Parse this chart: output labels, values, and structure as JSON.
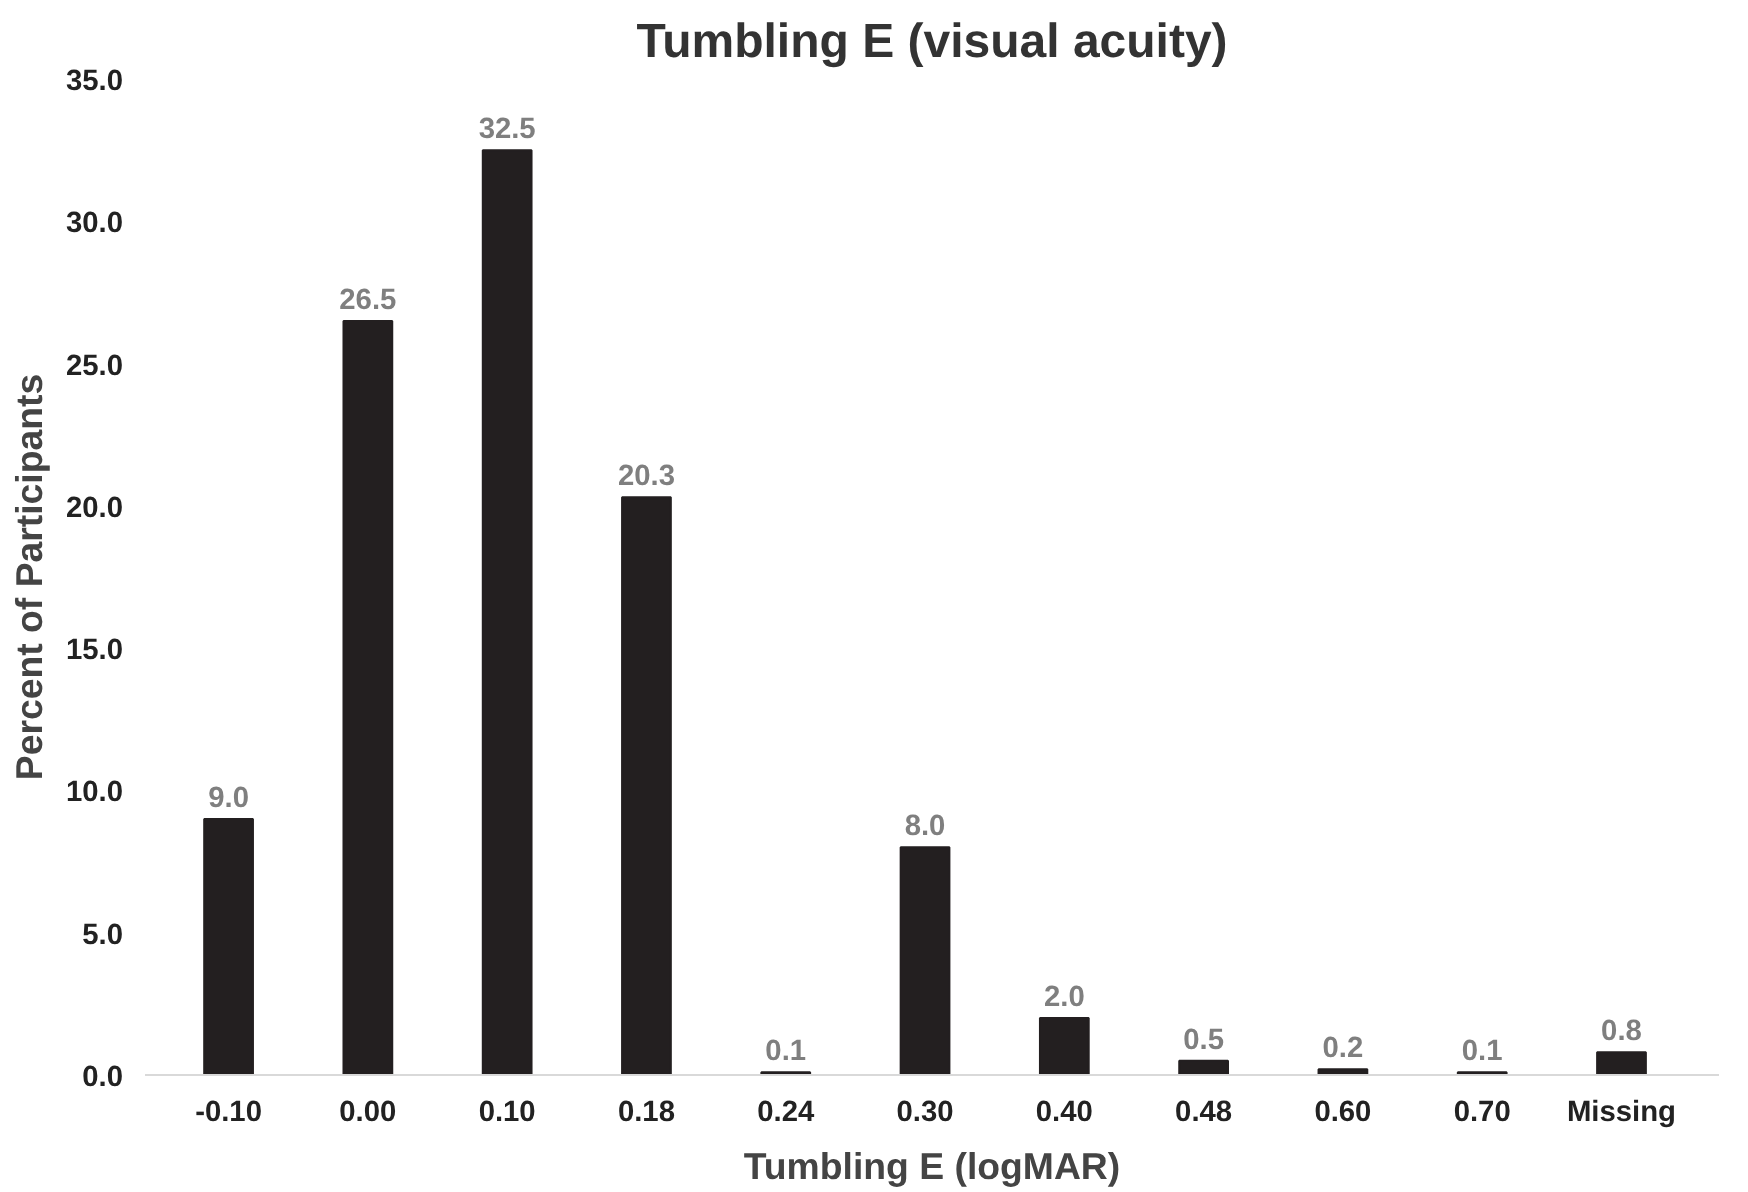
{
  "chart_data": {
    "type": "bar",
    "title": "Tumbling E (visual acuity)",
    "xlabel": "Tumbling E (logMAR)",
    "ylabel": "Percent of Participants",
    "categories": [
      "-0.10",
      "0.00",
      "0.10",
      "0.18",
      "0.24",
      "0.30",
      "0.40",
      "0.48",
      "0.60",
      "0.70",
      "Missing"
    ],
    "values": [
      9.0,
      26.5,
      32.5,
      20.3,
      0.1,
      8.0,
      2.0,
      0.5,
      0.2,
      0.1,
      0.8
    ],
    "value_labels": [
      "9.0",
      "26.5",
      "32.5",
      "20.3",
      "0.1",
      "8.0",
      "2.0",
      "0.5",
      "0.2",
      "0.1",
      "0.8"
    ],
    "color": "#231f20",
    "ylim": [
      0,
      35
    ],
    "yticks": [
      {
        "value": 0,
        "label": "0.0"
      },
      {
        "value": 5,
        "label": "5.0"
      },
      {
        "value": 10,
        "label": "10.0"
      },
      {
        "value": 15,
        "label": "15.0"
      },
      {
        "value": 20,
        "label": "20.0"
      },
      {
        "value": 25,
        "label": "25.0"
      },
      {
        "value": 30,
        "label": "30.0"
      },
      {
        "value": 35,
        "label": "35.0"
      }
    ],
    "grid": false
  }
}
